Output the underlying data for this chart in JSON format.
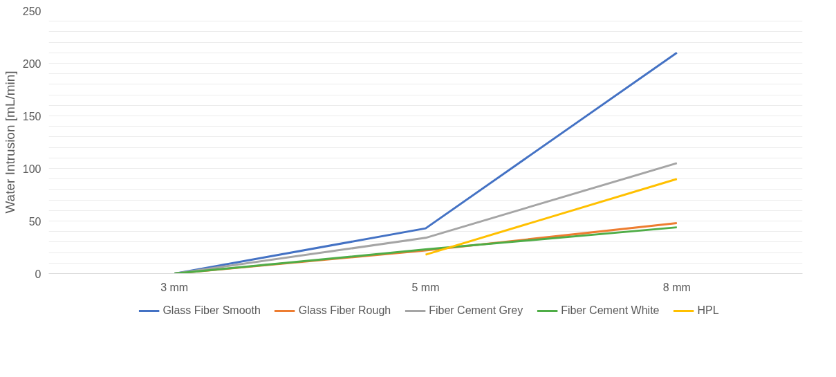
{
  "chart_data": {
    "type": "line",
    "ylabel": "Water Intrusion [mL/min]",
    "categories": [
      "3 mm",
      "5 mm",
      "8 mm"
    ],
    "series": [
      {
        "name": "Glass Fiber Smooth",
        "color": "#4472c4",
        "values": [
          0,
          43,
          210
        ]
      },
      {
        "name": "Glass Fiber Rough",
        "color": "#ed7d31",
        "values": [
          0,
          22,
          48
        ]
      },
      {
        "name": "Fiber Cement Grey",
        "color": "#a5a5a5",
        "values": [
          0,
          34,
          105
        ]
      },
      {
        "name": "Fiber Cement White",
        "color": "#4fad47",
        "values": [
          0,
          23,
          44
        ]
      },
      {
        "name": "HPL",
        "color": "#ffc000",
        "values": [
          null,
          18,
          90
        ]
      }
    ],
    "ylim": [
      0,
      250
    ],
    "yticks": [
      0,
      {
        "value": 10,
        "label": null
      },
      {
        "value": 20,
        "label": null
      },
      {
        "value": 30,
        "label": null
      },
      {
        "value": 40,
        "label": null
      },
      50,
      {
        "value": 60,
        "label": null
      },
      {
        "value": 70,
        "label": null
      },
      {
        "value": 80,
        "label": null
      },
      {
        "value": 90,
        "label": null
      },
      100,
      {
        "value": 110,
        "label": null
      },
      {
        "value": 120,
        "label": null
      },
      {
        "value": 130,
        "label": null
      },
      {
        "value": 140,
        "label": null
      },
      150,
      {
        "value": 160,
        "label": null
      },
      {
        "value": 170,
        "label": null
      },
      {
        "value": 180,
        "label": null
      },
      {
        "value": 190,
        "label": null
      },
      200,
      {
        "value": 210,
        "label": null
      },
      {
        "value": 220,
        "label": null
      },
      {
        "value": 230,
        "label": null
      },
      {
        "value": 240,
        "label": null
      },
      250
    ],
    "grid": "y",
    "legend": "bottom",
    "marker": "none",
    "line_style": "solid"
  }
}
